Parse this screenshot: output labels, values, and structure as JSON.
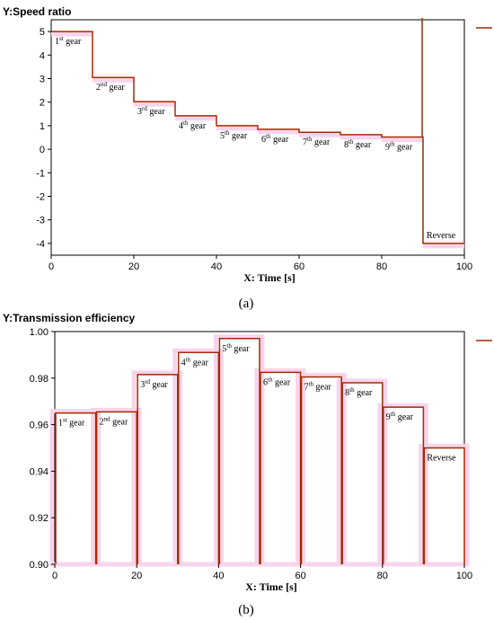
{
  "chart_data": [
    {
      "type": "line",
      "panel_label": "(a)",
      "title": "Y:Speed ratio",
      "xlabel": "X: Time [s]",
      "xlim": [
        0,
        100
      ],
      "ylim": [
        -4.5,
        5.5
      ],
      "xticks": [
        "0",
        "20",
        "40",
        "60",
        "80",
        "100"
      ],
      "yticks": [
        "-4",
        "-3",
        "-2",
        "-1",
        "0",
        "1",
        "2",
        "3",
        "4",
        "5"
      ],
      "color": "#a52a00",
      "legend": "top-right",
      "segments": [
        {
          "gear": "1st gear",
          "x0": 0,
          "x1": 10,
          "y": 5.0
        },
        {
          "gear": "2nd gear",
          "x0": 10,
          "x1": 20,
          "y": 3.05
        },
        {
          "gear": "3rd gear",
          "x0": 20,
          "x1": 30,
          "y": 2.02
        },
        {
          "gear": "4th gear",
          "x0": 30,
          "x1": 40,
          "y": 1.42
        },
        {
          "gear": "5th gear",
          "x0": 40,
          "x1": 50,
          "y": 1.0
        },
        {
          "gear": "6th gear",
          "x0": 50,
          "x1": 60,
          "y": 0.85
        },
        {
          "gear": "7th gear",
          "x0": 60,
          "x1": 70,
          "y": 0.72
        },
        {
          "gear": "8th gear",
          "x0": 70,
          "x1": 80,
          "y": 0.62
        },
        {
          "gear": "9th gear",
          "x0": 80,
          "x1": 90,
          "y": 0.52
        },
        {
          "gear": "Reverse",
          "x0": 90,
          "x1": 100,
          "y": -4.0
        }
      ]
    },
    {
      "type": "line",
      "panel_label": "(b)",
      "title": "Y:Transmission efficiency",
      "xlabel": "X: Time [s]",
      "xlim": [
        0,
        100
      ],
      "ylim": [
        0.9,
        1.0
      ],
      "xticks": [
        "0",
        "20",
        "40",
        "60",
        "80",
        "100"
      ],
      "yticks": [
        "0.90",
        "0.92",
        "0.94",
        "0.96",
        "0.98",
        "1.00"
      ],
      "color": "#a52a00",
      "legend": "top-right",
      "segments": [
        {
          "gear": "1st gear",
          "x0": 0,
          "x1": 10,
          "y": 0.965
        },
        {
          "gear": "2nd gear",
          "x0": 10,
          "x1": 20,
          "y": 0.9655
        },
        {
          "gear": "3rd gear",
          "x0": 20,
          "x1": 30,
          "y": 0.9815
        },
        {
          "gear": "4th gear",
          "x0": 30,
          "x1": 40,
          "y": 0.991
        },
        {
          "gear": "5th gear",
          "x0": 40,
          "x1": 50,
          "y": 0.997
        },
        {
          "gear": "6th gear",
          "x0": 50,
          "x1": 60,
          "y": 0.9825
        },
        {
          "gear": "7th gear",
          "x0": 60,
          "x1": 70,
          "y": 0.9805
        },
        {
          "gear": "8th gear",
          "x0": 70,
          "x1": 80,
          "y": 0.978
        },
        {
          "gear": "9th gear",
          "x0": 80,
          "x1": 90,
          "y": 0.9675
        },
        {
          "gear": "Reverse",
          "x0": 90,
          "x1": 100,
          "y": 0.95
        }
      ]
    }
  ]
}
